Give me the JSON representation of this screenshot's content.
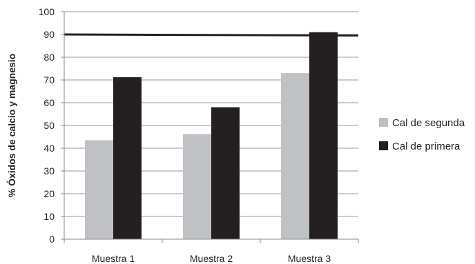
{
  "chart_data": {
    "type": "bar",
    "title": "",
    "xlabel": "",
    "ylabel": "% Óxidos de calcio y magnesio",
    "categories": [
      "Muestra 1",
      "Muestra 2",
      "Muestra 3"
    ],
    "series": [
      {
        "name": "Cal de segunda",
        "color": "#c0c1c4",
        "values": [
          43.5,
          46.2,
          73
        ]
      },
      {
        "name": "Cal de primera",
        "color": "#231f20",
        "values": [
          71.2,
          58,
          91
        ]
      }
    ],
    "reference_line": {
      "value": 90,
      "color": "#231f20"
    },
    "ylim": [
      0,
      100
    ],
    "yticks": [
      "0",
      "10",
      "20",
      "30",
      "40",
      "50",
      "60",
      "70",
      "80",
      "90",
      "100"
    ],
    "grid": true,
    "legend_position": "right"
  }
}
